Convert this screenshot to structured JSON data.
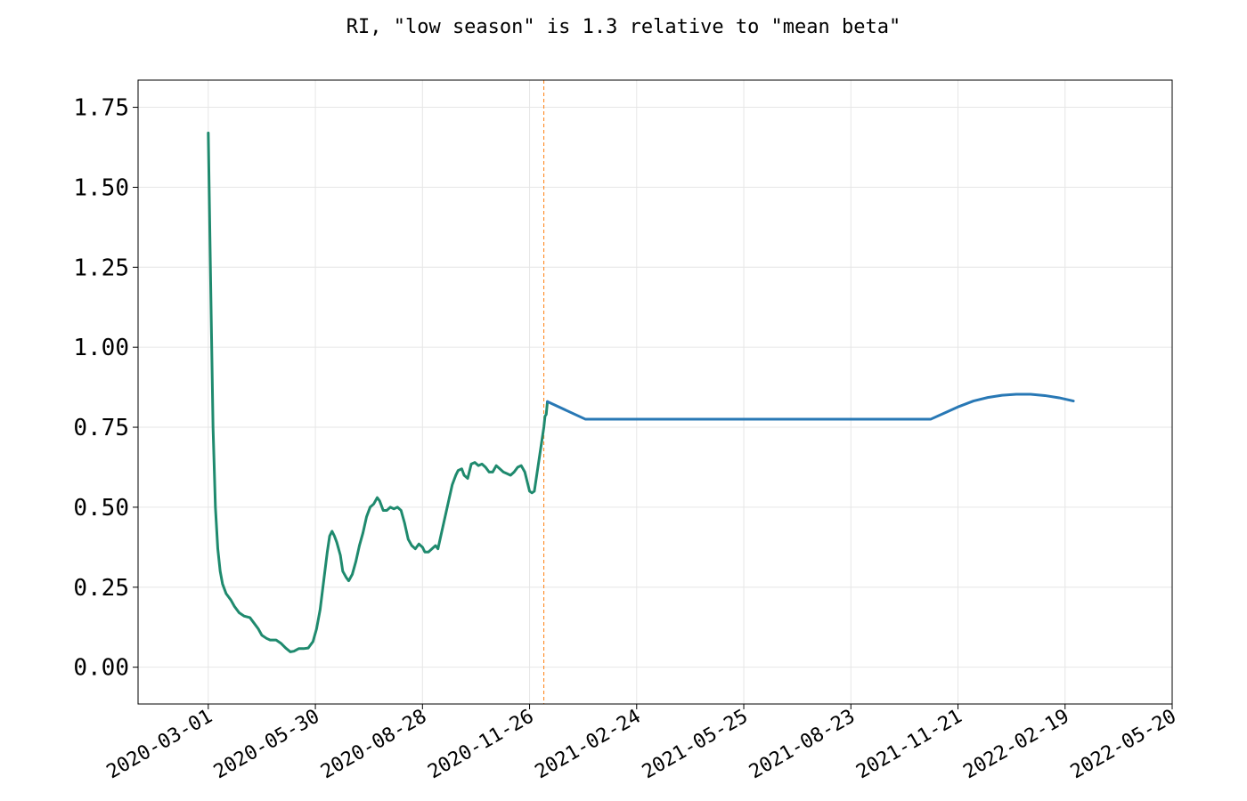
{
  "chart_data": {
    "type": "line",
    "title": "RI, \"low season\" is 1.3 relative to \"mean beta\"",
    "xlabel": "",
    "ylabel": "",
    "x_is_date": true,
    "xlim": [
      "2020-01-02",
      "2022-05-20"
    ],
    "ylim": [
      -0.115,
      1.835
    ],
    "yticks": [
      0.0,
      0.25,
      0.5,
      0.75,
      1.0,
      1.25,
      1.5,
      1.75
    ],
    "ytick_labels": [
      "0.00",
      "0.25",
      "0.50",
      "0.75",
      "1.00",
      "1.25",
      "1.50",
      "1.75"
    ],
    "xticks": [
      "2020-03-01",
      "2020-05-30",
      "2020-08-28",
      "2020-11-26",
      "2021-02-24",
      "2021-05-25",
      "2021-08-23",
      "2021-11-21",
      "2022-02-19",
      "2022-05-20"
    ],
    "xtick_labels": [
      "2020-03-01",
      "2020-05-30",
      "2020-08-28",
      "2020-11-26",
      "2021-02-24",
      "2021-05-25",
      "2021-08-23",
      "2021-11-21",
      "2022-02-19",
      "2022-05-20"
    ],
    "grid": true,
    "vline": {
      "x": "2020-12-08",
      "color": "#ff7f0e",
      "style": "dashed"
    },
    "series": [
      {
        "color": "#1f8a6e",
        "points": [
          [
            "2020-03-01",
            1.67
          ],
          [
            "2020-03-03",
            1.2
          ],
          [
            "2020-03-05",
            0.75
          ],
          [
            "2020-03-07",
            0.5
          ],
          [
            "2020-03-09",
            0.37
          ],
          [
            "2020-03-11",
            0.3
          ],
          [
            "2020-03-13",
            0.26
          ],
          [
            "2020-03-16",
            0.23
          ],
          [
            "2020-03-20",
            0.21
          ],
          [
            "2020-03-23",
            0.19
          ],
          [
            "2020-03-27",
            0.17
          ],
          [
            "2020-03-31",
            0.16
          ],
          [
            "2020-04-05",
            0.155
          ],
          [
            "2020-04-08",
            0.14
          ],
          [
            "2020-04-12",
            0.12
          ],
          [
            "2020-04-15",
            0.1
          ],
          [
            "2020-04-19",
            0.09
          ],
          [
            "2020-04-22",
            0.085
          ],
          [
            "2020-04-27",
            0.085
          ],
          [
            "2020-05-01",
            0.075
          ],
          [
            "2020-05-05",
            0.06
          ],
          [
            "2020-05-09",
            0.048
          ],
          [
            "2020-05-12",
            0.05
          ],
          [
            "2020-05-16",
            0.058
          ],
          [
            "2020-05-20",
            0.058
          ],
          [
            "2020-05-24",
            0.06
          ],
          [
            "2020-05-28",
            0.08
          ],
          [
            "2020-05-31",
            0.12
          ],
          [
            "2020-06-03",
            0.18
          ],
          [
            "2020-06-06",
            0.27
          ],
          [
            "2020-06-09",
            0.36
          ],
          [
            "2020-06-11",
            0.41
          ],
          [
            "2020-06-13",
            0.425
          ],
          [
            "2020-06-15",
            0.41
          ],
          [
            "2020-06-17",
            0.39
          ],
          [
            "2020-06-20",
            0.35
          ],
          [
            "2020-06-22",
            0.3
          ],
          [
            "2020-06-25",
            0.28
          ],
          [
            "2020-06-27",
            0.27
          ],
          [
            "2020-06-30",
            0.29
          ],
          [
            "2020-07-03",
            0.33
          ],
          [
            "2020-07-06",
            0.38
          ],
          [
            "2020-07-09",
            0.42
          ],
          [
            "2020-07-12",
            0.47
          ],
          [
            "2020-07-15",
            0.5
          ],
          [
            "2020-07-18",
            0.51
          ],
          [
            "2020-07-21",
            0.53
          ],
          [
            "2020-07-23",
            0.52
          ],
          [
            "2020-07-26",
            0.49
          ],
          [
            "2020-07-29",
            0.49
          ],
          [
            "2020-08-01",
            0.5
          ],
          [
            "2020-08-04",
            0.495
          ],
          [
            "2020-08-07",
            0.5
          ],
          [
            "2020-08-10",
            0.49
          ],
          [
            "2020-08-13",
            0.45
          ],
          [
            "2020-08-16",
            0.4
          ],
          [
            "2020-08-19",
            0.38
          ],
          [
            "2020-08-22",
            0.37
          ],
          [
            "2020-08-25",
            0.385
          ],
          [
            "2020-08-28",
            0.375
          ],
          [
            "2020-08-30",
            0.36
          ],
          [
            "2020-09-02",
            0.36
          ],
          [
            "2020-09-05",
            0.37
          ],
          [
            "2020-09-08",
            0.38
          ],
          [
            "2020-09-10",
            0.37
          ],
          [
            "2020-09-13",
            0.42
          ],
          [
            "2020-09-16",
            0.47
          ],
          [
            "2020-09-19",
            0.52
          ],
          [
            "2020-09-22",
            0.57
          ],
          [
            "2020-09-25",
            0.6
          ],
          [
            "2020-09-27",
            0.615
          ],
          [
            "2020-09-30",
            0.62
          ],
          [
            "2020-10-02",
            0.6
          ],
          [
            "2020-10-05",
            0.59
          ],
          [
            "2020-10-08",
            0.635
          ],
          [
            "2020-10-11",
            0.64
          ],
          [
            "2020-10-14",
            0.63
          ],
          [
            "2020-10-17",
            0.635
          ],
          [
            "2020-10-20",
            0.625
          ],
          [
            "2020-10-23",
            0.61
          ],
          [
            "2020-10-26",
            0.61
          ],
          [
            "2020-10-29",
            0.63
          ],
          [
            "2020-11-01",
            0.62
          ],
          [
            "2020-11-04",
            0.61
          ],
          [
            "2020-11-07",
            0.605
          ],
          [
            "2020-11-10",
            0.6
          ],
          [
            "2020-11-13",
            0.61
          ],
          [
            "2020-11-16",
            0.625
          ],
          [
            "2020-11-19",
            0.63
          ],
          [
            "2020-11-22",
            0.61
          ],
          [
            "2020-11-24",
            0.58
          ],
          [
            "2020-11-26",
            0.55
          ],
          [
            "2020-11-28",
            0.545
          ],
          [
            "2020-11-30",
            0.55
          ],
          [
            "2020-12-02",
            0.6
          ],
          [
            "2020-12-04",
            0.65
          ],
          [
            "2020-12-06",
            0.7
          ],
          [
            "2020-12-08",
            0.75
          ],
          [
            "2020-12-09",
            0.785
          ],
          [
            "2020-12-10",
            0.79
          ],
          [
            "2020-12-11",
            0.83
          ]
        ]
      },
      {
        "color": "#2878b5",
        "points": [
          [
            "2020-12-11",
            0.83
          ],
          [
            "2021-01-12",
            0.775
          ],
          [
            "2021-01-28",
            0.775
          ],
          [
            "2021-03-12",
            0.775
          ],
          [
            "2021-06-01",
            0.775
          ],
          [
            "2021-09-01",
            0.775
          ],
          [
            "2021-10-29",
            0.775
          ],
          [
            "2021-11-10",
            0.795
          ],
          [
            "2021-11-22",
            0.815
          ],
          [
            "2021-12-04",
            0.832
          ],
          [
            "2021-12-16",
            0.843
          ],
          [
            "2021-12-28",
            0.85
          ],
          [
            "2022-01-09",
            0.853
          ],
          [
            "2022-01-21",
            0.853
          ],
          [
            "2022-02-02",
            0.849
          ],
          [
            "2022-02-14",
            0.842
          ],
          [
            "2022-02-26",
            0.832
          ]
        ]
      }
    ]
  }
}
